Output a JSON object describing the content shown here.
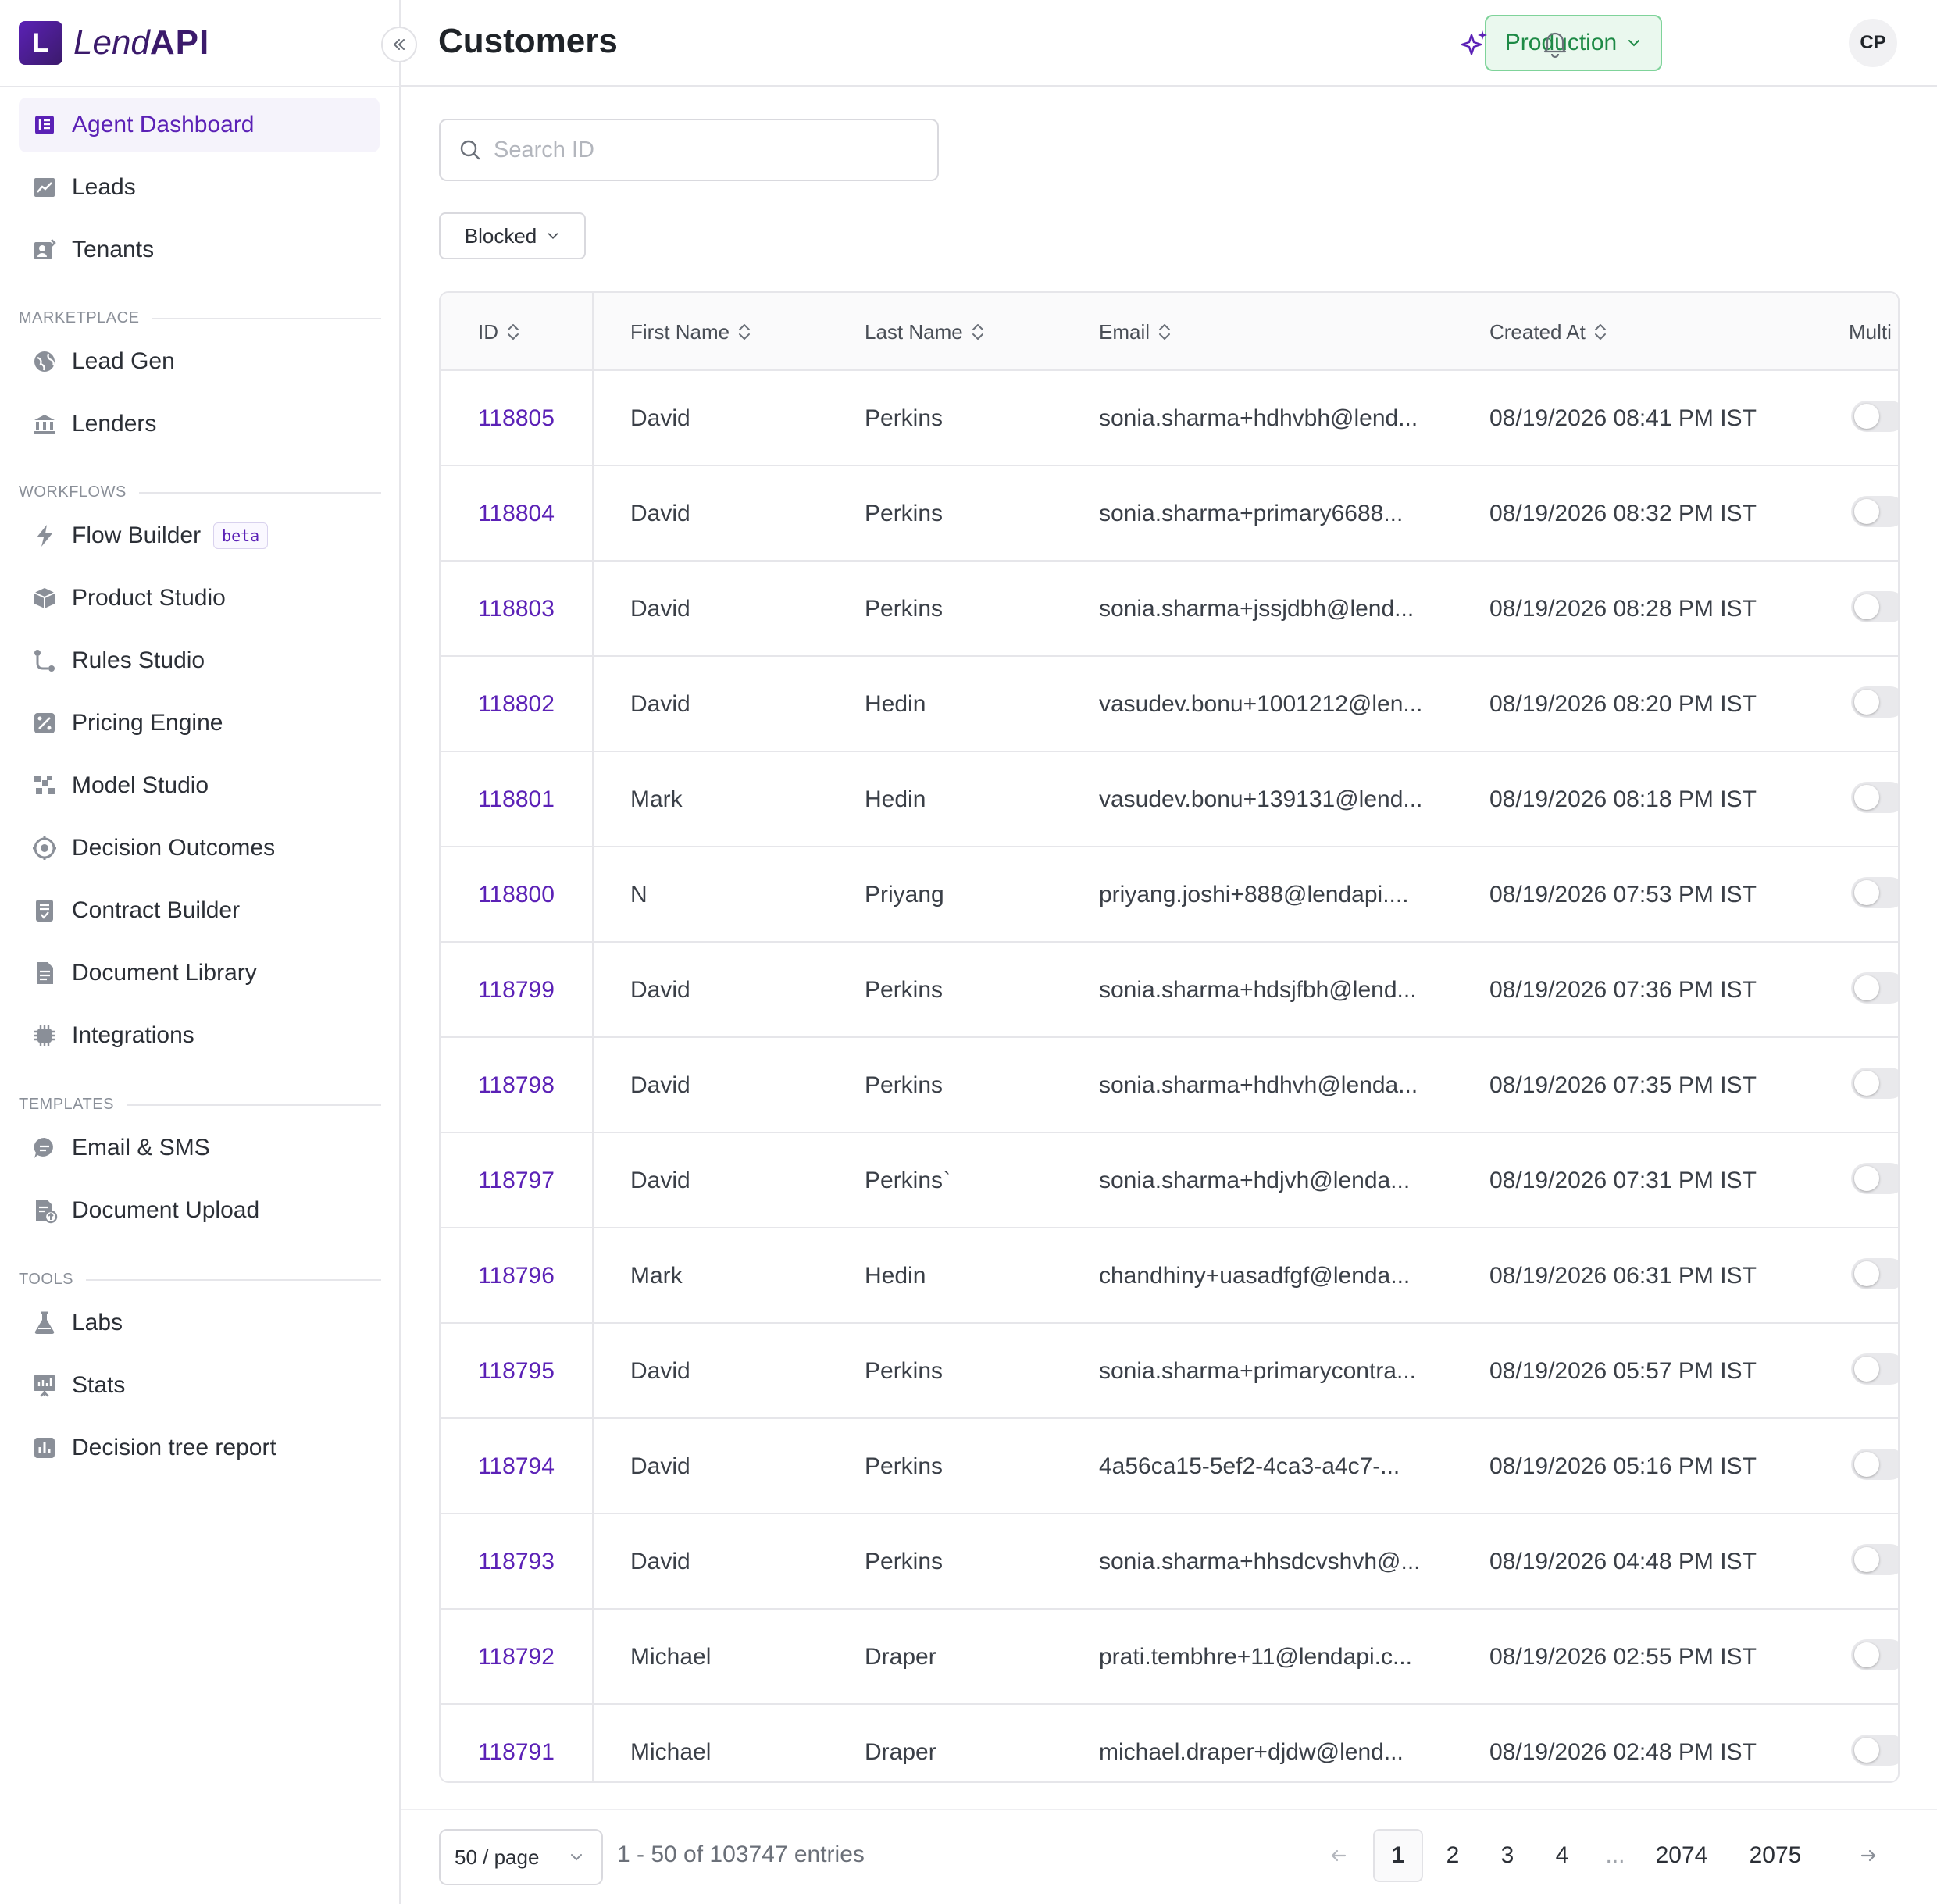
{
  "brand": {
    "mark": "L",
    "name_light": "Lend",
    "name_bold": "API"
  },
  "header": {
    "title": "Customers",
    "environment": "Production",
    "avatar_initials": "CP"
  },
  "colors": {
    "accent": "#5b21b6",
    "env_green": "#1e8a46",
    "env_bg": "#eaf8ee"
  },
  "sidebar": {
    "top_items": [
      {
        "label": "Agent Dashboard",
        "icon": "dashboard-icon",
        "active": true
      },
      {
        "label": "Leads",
        "icon": "trend-chart-icon"
      },
      {
        "label": "Tenants",
        "icon": "tenants-icon"
      }
    ],
    "sections": [
      {
        "label": "MARKETPLACE",
        "items": [
          {
            "label": "Lead Gen",
            "icon": "globe-icon"
          },
          {
            "label": "Lenders",
            "icon": "bank-icon"
          }
        ]
      },
      {
        "label": "WORKFLOWS",
        "items": [
          {
            "label": "Flow Builder",
            "icon": "lightning-icon",
            "badge": "beta"
          },
          {
            "label": "Product Studio",
            "icon": "box-icon"
          },
          {
            "label": "Rules Studio",
            "icon": "branch-icon"
          },
          {
            "label": "Pricing Engine",
            "icon": "percent-icon"
          },
          {
            "label": "Model Studio",
            "icon": "model-grid-icon"
          },
          {
            "label": "Decision Outcomes",
            "icon": "target-icon"
          },
          {
            "label": "Contract Builder",
            "icon": "contract-icon"
          },
          {
            "label": "Document Library",
            "icon": "document-icon"
          },
          {
            "label": "Integrations",
            "icon": "chip-icon"
          }
        ]
      },
      {
        "label": "TEMPLATES",
        "items": [
          {
            "label": "Email & SMS",
            "icon": "chat-icon"
          },
          {
            "label": "Document Upload",
            "icon": "document-upload-icon"
          }
        ]
      },
      {
        "label": "TOOLS",
        "items": [
          {
            "label": "Labs",
            "icon": "flask-icon"
          },
          {
            "label": "Stats",
            "icon": "presentation-icon"
          },
          {
            "label": "Decision tree report",
            "icon": "bar-report-icon"
          }
        ]
      }
    ]
  },
  "search": {
    "placeholder": "Search ID",
    "value": ""
  },
  "filter": {
    "selected": "Blocked"
  },
  "table": {
    "columns": [
      "ID",
      "First Name",
      "Last Name",
      "Email",
      "Created At",
      "Multi"
    ],
    "rows": [
      {
        "id": "118805",
        "first": "David",
        "last": "Perkins",
        "email": "sonia.sharma+hdhvbh@lend...",
        "created": "08/19/2026 08:41 PM IST"
      },
      {
        "id": "118804",
        "first": "David",
        "last": "Perkins",
        "email": "sonia.sharma+primary6688...",
        "created": "08/19/2026 08:32 PM IST"
      },
      {
        "id": "118803",
        "first": "David",
        "last": "Perkins",
        "email": "sonia.sharma+jssjdbh@lend...",
        "created": "08/19/2026 08:28 PM IST"
      },
      {
        "id": "118802",
        "first": "David",
        "last": "Hedin",
        "email": "vasudev.bonu+1001212@len...",
        "created": "08/19/2026 08:20 PM IST"
      },
      {
        "id": "118801",
        "first": "Mark",
        "last": "Hedin",
        "email": "vasudev.bonu+139131@lend...",
        "created": "08/19/2026 08:18 PM IST"
      },
      {
        "id": "118800",
        "first": "N",
        "last": "Priyang",
        "email": "priyang.joshi+888@lendapi....",
        "created": "08/19/2026 07:53 PM IST"
      },
      {
        "id": "118799",
        "first": "David",
        "last": "Perkins",
        "email": "sonia.sharma+hdsjfbh@lend...",
        "created": "08/19/2026 07:36 PM IST"
      },
      {
        "id": "118798",
        "first": "David",
        "last": "Perkins",
        "email": "sonia.sharma+hdhvh@lenda...",
        "created": "08/19/2026 07:35 PM IST"
      },
      {
        "id": "118797",
        "first": "David",
        "last": "Perkins`",
        "email": "sonia.sharma+hdjvh@lenda...",
        "created": "08/19/2026 07:31 PM IST"
      },
      {
        "id": "118796",
        "first": "Mark",
        "last": "Hedin",
        "email": "chandhiny+uasadfgf@lenda...",
        "created": "08/19/2026 06:31 PM IST"
      },
      {
        "id": "118795",
        "first": "David",
        "last": "Perkins",
        "email": "sonia.sharma+primarycontra...",
        "created": "08/19/2026 05:57 PM IST"
      },
      {
        "id": "118794",
        "first": "David",
        "last": "Perkins",
        "email": "4a56ca15-5ef2-4ca3-a4c7-...",
        "created": "08/19/2026 05:16 PM IST"
      },
      {
        "id": "118793",
        "first": "David",
        "last": "Perkins",
        "email": "sonia.sharma+hhsdcvshvh@...",
        "created": "08/19/2026 04:48 PM IST"
      },
      {
        "id": "118792",
        "first": "Michael",
        "last": "Draper",
        "email": "prati.tembhre+11@lendapi.c...",
        "created": "08/19/2026 02:55 PM IST"
      },
      {
        "id": "118791",
        "first": "Michael",
        "last": "Draper",
        "email": "michael.draper+djdw@lend...",
        "created": "08/19/2026 02:48 PM IST"
      }
    ]
  },
  "pagination": {
    "page_size": "50 / page",
    "summary": "1 - 50 of 103747 entries",
    "pages": [
      "1",
      "2",
      "3",
      "4",
      "...",
      "2074",
      "2075"
    ],
    "current": "1"
  }
}
